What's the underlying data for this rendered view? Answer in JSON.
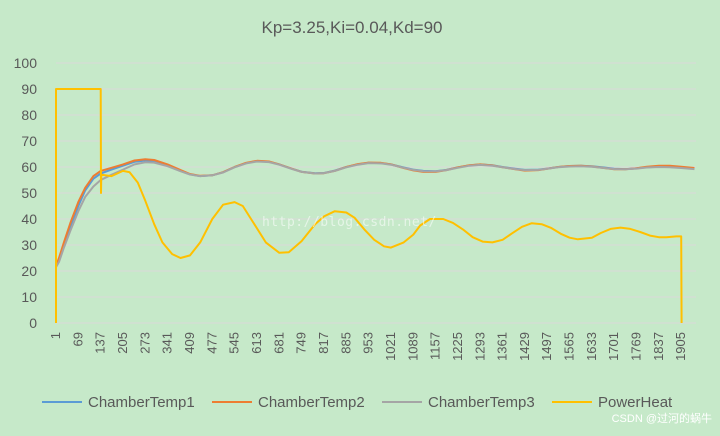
{
  "chart_data": {
    "type": "line",
    "title": "Kp=3.25,Ki=0.04,Kd=90",
    "xlabel": "",
    "ylabel": "",
    "ylim": [
      0,
      100
    ],
    "yticks": [
      "0",
      "10",
      "20",
      "30",
      "40",
      "50",
      "60",
      "70",
      "80",
      "90",
      "100"
    ],
    "xlim": [
      1,
      1950
    ],
    "xticks": [
      "1",
      "69",
      "137",
      "205",
      "273",
      "341",
      "409",
      "477",
      "545",
      "613",
      "681",
      "749",
      "817",
      "885",
      "953",
      "1021",
      "1089",
      "1157",
      "1225",
      "1293",
      "1361",
      "1429",
      "1497",
      "1565",
      "1633",
      "1701",
      "1769",
      "1837",
      "1905"
    ],
    "grid": "horizontal",
    "legend": "bottom",
    "series": [
      {
        "name": "ChamberTemp1",
        "color": "#5b9bd5",
        "points": [
          [
            1,
            22
          ],
          [
            10,
            24
          ],
          [
            25,
            30
          ],
          [
            45,
            37
          ],
          [
            69,
            45
          ],
          [
            90,
            51
          ],
          [
            115,
            55.5
          ],
          [
            137,
            57.5
          ],
          [
            170,
            59
          ],
          [
            205,
            60.5
          ],
          [
            240,
            62
          ],
          [
            273,
            62.5
          ],
          [
            300,
            62
          ],
          [
            341,
            60.5
          ],
          [
            380,
            58.5
          ],
          [
            409,
            57.2
          ],
          [
            440,
            56.5
          ],
          [
            477,
            56.8
          ],
          [
            510,
            58
          ],
          [
            545,
            60
          ],
          [
            580,
            61.5
          ],
          [
            613,
            62.3
          ],
          [
            650,
            62
          ],
          [
            681,
            61
          ],
          [
            720,
            59.3
          ],
          [
            749,
            58.2
          ],
          [
            790,
            57.6
          ],
          [
            817,
            57.7
          ],
          [
            850,
            58.6
          ],
          [
            885,
            60
          ],
          [
            920,
            61
          ],
          [
            953,
            61.6
          ],
          [
            990,
            61.5
          ],
          [
            1021,
            61
          ],
          [
            1060,
            59.8
          ],
          [
            1089,
            59
          ],
          [
            1120,
            58.5
          ],
          [
            1157,
            58.4
          ],
          [
            1190,
            58.9
          ],
          [
            1225,
            59.9
          ],
          [
            1260,
            60.6
          ],
          [
            1293,
            61
          ],
          [
            1330,
            60.7
          ],
          [
            1361,
            60
          ],
          [
            1400,
            59.3
          ],
          [
            1429,
            58.9
          ],
          [
            1470,
            59
          ],
          [
            1497,
            59.4
          ],
          [
            1530,
            60
          ],
          [
            1565,
            60.4
          ],
          [
            1600,
            60.5
          ],
          [
            1633,
            60.3
          ],
          [
            1670,
            59.8
          ],
          [
            1701,
            59.3
          ],
          [
            1735,
            59.2
          ],
          [
            1769,
            59.5
          ],
          [
            1800,
            59.9
          ],
          [
            1837,
            60.1
          ],
          [
            1870,
            60
          ],
          [
            1905,
            59.8
          ],
          [
            1945,
            59.4
          ]
        ]
      },
      {
        "name": "ChamberTemp2",
        "color": "#ed7d31",
        "points": [
          [
            1,
            22
          ],
          [
            10,
            25
          ],
          [
            25,
            31
          ],
          [
            45,
            38.5
          ],
          [
            69,
            46.5
          ],
          [
            90,
            52
          ],
          [
            115,
            56.5
          ],
          [
            137,
            58.5
          ],
          [
            170,
            59.7
          ],
          [
            205,
            61
          ],
          [
            240,
            62.5
          ],
          [
            273,
            63
          ],
          [
            300,
            62.7
          ],
          [
            341,
            61
          ],
          [
            380,
            58.8
          ],
          [
            409,
            57.3
          ],
          [
            440,
            56.6
          ],
          [
            477,
            56.8
          ],
          [
            510,
            58
          ],
          [
            545,
            60
          ],
          [
            580,
            61.6
          ],
          [
            613,
            62.4
          ],
          [
            650,
            62.1
          ],
          [
            681,
            61
          ],
          [
            720,
            59.3
          ],
          [
            749,
            58.1
          ],
          [
            790,
            57.5
          ],
          [
            817,
            57.6
          ],
          [
            850,
            58.5
          ],
          [
            885,
            60
          ],
          [
            920,
            61.1
          ],
          [
            953,
            61.7
          ],
          [
            990,
            61.6
          ],
          [
            1021,
            61
          ],
          [
            1060,
            59.6
          ],
          [
            1089,
            58.7
          ],
          [
            1120,
            58.1
          ],
          [
            1157,
            58.1
          ],
          [
            1190,
            58.8
          ],
          [
            1225,
            59.9
          ],
          [
            1260,
            60.7
          ],
          [
            1293,
            61
          ],
          [
            1330,
            60.6
          ],
          [
            1361,
            59.9
          ],
          [
            1400,
            59.1
          ],
          [
            1429,
            58.6
          ],
          [
            1470,
            58.8
          ],
          [
            1497,
            59.3
          ],
          [
            1530,
            60
          ],
          [
            1565,
            60.4
          ],
          [
            1600,
            60.5
          ],
          [
            1633,
            60.2
          ],
          [
            1670,
            59.6
          ],
          [
            1701,
            59.1
          ],
          [
            1735,
            59.1
          ],
          [
            1769,
            59.5
          ],
          [
            1800,
            60.1
          ],
          [
            1837,
            60.5
          ],
          [
            1870,
            60.5
          ],
          [
            1905,
            60.1
          ],
          [
            1945,
            59.6
          ]
        ]
      },
      {
        "name": "ChamberTemp3",
        "color": "#a5a5a5",
        "points": [
          [
            1,
            21.5
          ],
          [
            10,
            23.5
          ],
          [
            25,
            29
          ],
          [
            45,
            35.5
          ],
          [
            69,
            43
          ],
          [
            90,
            48.5
          ],
          [
            115,
            52.5
          ],
          [
            137,
            55
          ],
          [
            170,
            57
          ],
          [
            205,
            59
          ],
          [
            240,
            61
          ],
          [
            273,
            61.8
          ],
          [
            300,
            61.7
          ],
          [
            341,
            60.3
          ],
          [
            380,
            58.4
          ],
          [
            409,
            57.1
          ],
          [
            440,
            56.5
          ],
          [
            477,
            56.8
          ],
          [
            510,
            57.9
          ],
          [
            545,
            59.9
          ],
          [
            580,
            61.4
          ],
          [
            613,
            62.1
          ],
          [
            650,
            61.9
          ],
          [
            681,
            60.9
          ],
          [
            720,
            59.2
          ],
          [
            749,
            58.1
          ],
          [
            790,
            57.5
          ],
          [
            817,
            57.6
          ],
          [
            850,
            58.5
          ],
          [
            885,
            59.9
          ],
          [
            920,
            60.9
          ],
          [
            953,
            61.5
          ],
          [
            990,
            61.4
          ],
          [
            1021,
            60.9
          ],
          [
            1060,
            59.7
          ],
          [
            1089,
            58.9
          ],
          [
            1120,
            58.4
          ],
          [
            1157,
            58.3
          ],
          [
            1190,
            58.8
          ],
          [
            1225,
            59.7
          ],
          [
            1260,
            60.5
          ],
          [
            1293,
            60.8
          ],
          [
            1330,
            60.5
          ],
          [
            1361,
            59.9
          ],
          [
            1400,
            59.2
          ],
          [
            1429,
            58.8
          ],
          [
            1470,
            58.9
          ],
          [
            1497,
            59.3
          ],
          [
            1530,
            59.9
          ],
          [
            1565,
            60.2
          ],
          [
            1600,
            60.3
          ],
          [
            1633,
            60.1
          ],
          [
            1670,
            59.6
          ],
          [
            1701,
            59.2
          ],
          [
            1735,
            59.1
          ],
          [
            1769,
            59.4
          ],
          [
            1800,
            59.8
          ],
          [
            1837,
            60
          ],
          [
            1870,
            59.9
          ],
          [
            1905,
            59.6
          ],
          [
            1945,
            59.2
          ]
        ]
      },
      {
        "name": "PowerHeat",
        "color": "#ffc000",
        "points": [
          [
            1,
            0
          ],
          [
            1,
            90
          ],
          [
            137,
            90
          ],
          [
            138,
            50
          ],
          [
            139,
            57
          ],
          [
            170,
            56.5
          ],
          [
            205,
            58.5
          ],
          [
            225,
            58
          ],
          [
            250,
            54
          ],
          [
            273,
            47
          ],
          [
            300,
            38
          ],
          [
            325,
            31
          ],
          [
            355,
            26.5
          ],
          [
            380,
            25
          ],
          [
            409,
            26
          ],
          [
            440,
            31
          ],
          [
            477,
            40
          ],
          [
            510,
            45.5
          ],
          [
            545,
            46.5
          ],
          [
            570,
            45
          ],
          [
            600,
            39
          ],
          [
            640,
            31
          ],
          [
            681,
            27
          ],
          [
            710,
            27.2
          ],
          [
            749,
            31.5
          ],
          [
            790,
            38
          ],
          [
            817,
            41
          ],
          [
            850,
            43
          ],
          [
            885,
            42.5
          ],
          [
            910,
            40.5
          ],
          [
            940,
            36
          ],
          [
            970,
            32
          ],
          [
            1000,
            29.5
          ],
          [
            1021,
            29
          ],
          [
            1060,
            31
          ],
          [
            1089,
            34
          ],
          [
            1110,
            37.5
          ],
          [
            1140,
            40
          ],
          [
            1180,
            40
          ],
          [
            1210,
            38.5
          ],
          [
            1240,
            36
          ],
          [
            1270,
            33
          ],
          [
            1300,
            31.3
          ],
          [
            1330,
            31
          ],
          [
            1361,
            32
          ],
          [
            1390,
            34.5
          ],
          [
            1420,
            37
          ],
          [
            1450,
            38.4
          ],
          [
            1480,
            38
          ],
          [
            1510,
            36.5
          ],
          [
            1540,
            34.2
          ],
          [
            1565,
            32.8
          ],
          [
            1590,
            32.2
          ],
          [
            1633,
            32.8
          ],
          [
            1660,
            34.6
          ],
          [
            1690,
            36.2
          ],
          [
            1720,
            36.7
          ],
          [
            1750,
            36.2
          ],
          [
            1780,
            35
          ],
          [
            1810,
            33.6
          ],
          [
            1837,
            33
          ],
          [
            1860,
            33
          ],
          [
            1890,
            33.3
          ],
          [
            1905,
            33.3
          ],
          [
            1906,
            0
          ]
        ]
      }
    ]
  },
  "watermark": "http://blog.csdn.net/",
  "credit": "CSDN @过河的蜗牛"
}
